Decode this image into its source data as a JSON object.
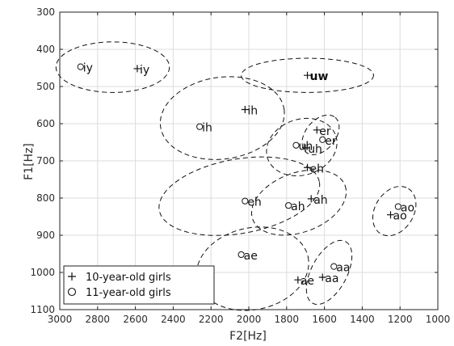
{
  "chart_data": {
    "type": "scatter",
    "xlabel": "F2[Hz]",
    "ylabel": "F1[Hz]",
    "xlim": [
      3000,
      1000
    ],
    "ylim": [
      300,
      1100
    ],
    "x_reversed": true,
    "y_reversed": true,
    "xticks": [
      3000,
      2800,
      2600,
      2400,
      2200,
      2000,
      1800,
      1600,
      1400,
      1200,
      1000
    ],
    "yticks": [
      300,
      400,
      500,
      600,
      700,
      800,
      900,
      1000,
      1100
    ],
    "xtick_labels": [
      "3000",
      "2800",
      "2600",
      "2400",
      "2200",
      "2000",
      "1800",
      "1600",
      "1400",
      "1200",
      "1000"
    ],
    "ytick_labels": [
      "300",
      "400",
      "500",
      "600",
      "700",
      "800",
      "900",
      "1000",
      "1100"
    ],
    "grid": true,
    "legend_position": "bottom-left",
    "series": [
      {
        "name": "10-year-old girls",
        "marker": "plus",
        "points": [
          {
            "label": "iy",
            "x": 2590,
            "y": 452
          },
          {
            "label": "uw",
            "x": 1690,
            "y": 470
          },
          {
            "label": "ih",
            "x": 2020,
            "y": 562
          },
          {
            "label": "er",
            "x": 1640,
            "y": 617
          },
          {
            "label": "uh",
            "x": 1700,
            "y": 665
          },
          {
            "label": "eh",
            "x": 1690,
            "y": 718
          },
          {
            "label": "ah",
            "x": 1670,
            "y": 802
          },
          {
            "label": "ao",
            "x": 1250,
            "y": 845
          },
          {
            "label": "ae",
            "x": 1740,
            "y": 1020
          },
          {
            "label": "aa",
            "x": 1610,
            "y": 1013
          }
        ]
      },
      {
        "name": "11-year-old girls",
        "marker": "circle",
        "points": [
          {
            "label": "iy",
            "x": 2890,
            "y": 447
          },
          {
            "label": "ih",
            "x": 2260,
            "y": 608
          },
          {
            "label": "er",
            "x": 1610,
            "y": 643
          },
          {
            "label": "uh",
            "x": 1750,
            "y": 658
          },
          {
            "label": "eh",
            "x": 2020,
            "y": 808
          },
          {
            "label": "ah",
            "x": 1790,
            "y": 820
          },
          {
            "label": "ao",
            "x": 1210,
            "y": 823
          },
          {
            "label": "ae",
            "x": 2040,
            "y": 952
          },
          {
            "label": "aa",
            "x": 1550,
            "y": 984
          }
        ]
      }
    ],
    "ellipses": [
      {
        "vowel": "iy",
        "cx": 2720,
        "cy": 448,
        "rx": 300,
        "ry": 68,
        "angle": 0
      },
      {
        "vowel": "uw",
        "cx": 1690,
        "cy": 470,
        "rx": 350,
        "ry": 46,
        "angle": 0
      },
      {
        "vowel": "ih",
        "cx": 2140,
        "cy": 585,
        "rx": 330,
        "ry": 110,
        "angle": -8
      },
      {
        "vowel": "er",
        "cx": 1620,
        "cy": 630,
        "rx": 120,
        "ry": 40,
        "angle": -50
      },
      {
        "vowel": "uh",
        "cx": 1720,
        "cy": 663,
        "rx": 190,
        "ry": 75,
        "angle": -18
      },
      {
        "vowel": "eh",
        "cx": 2050,
        "cy": 795,
        "rx": 430,
        "ry": 100,
        "angle": -10
      },
      {
        "vowel": "ah",
        "cx": 1735,
        "cy": 812,
        "rx": 260,
        "ry": 80,
        "angle": -20
      },
      {
        "vowel": "ao",
        "cx": 1230,
        "cy": 835,
        "rx": 140,
        "ry": 52,
        "angle": -58
      },
      {
        "vowel": "ae",
        "cx": 1980,
        "cy": 990,
        "rx": 300,
        "ry": 110,
        "angle": -12
      },
      {
        "vowel": "aa",
        "cx": 1575,
        "cy": 1000,
        "rx": 185,
        "ry": 48,
        "angle": -62
      }
    ],
    "label_styles": {
      "uw": "bold"
    },
    "colors": {
      "markers": "#111111",
      "ellipse": "#111111",
      "grid": "#dcdcdc",
      "axes": "#222222",
      "background": "#ffffff"
    }
  }
}
